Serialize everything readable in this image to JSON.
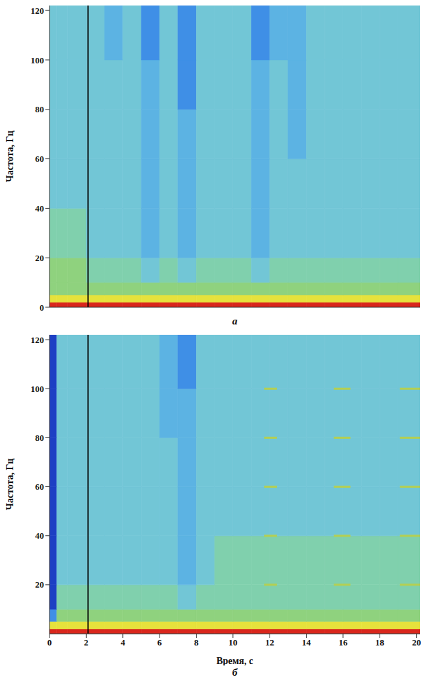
{
  "chart_data": [
    {
      "type": "heatmap",
      "title": "а",
      "ylabel": "Частота, Гц",
      "xlim": [
        0,
        20.2
      ],
      "xticks": [
        0,
        2,
        4,
        6,
        8,
        10,
        12,
        14,
        16,
        18,
        20
      ],
      "ylim": [
        0,
        122
      ],
      "yticks": [
        0,
        20,
        40,
        60,
        80,
        100,
        120
      ],
      "tick_labels": "y",
      "vline": 2.1,
      "time_edges": [
        0,
        0.4,
        1,
        2,
        3,
        4,
        5,
        6,
        7,
        8,
        9,
        10,
        11,
        12,
        13,
        14,
        15,
        16,
        17,
        18,
        19,
        20.2
      ],
      "frequency_edges": [
        0,
        2,
        5,
        10,
        20,
        40,
        60,
        80,
        100,
        122
      ],
      "zlim": [
        0,
        7
      ],
      "colors": [
        "#1d3fc4",
        "#3f8fe6",
        "#5cb3e3",
        "#72c6d6",
        "#80d0ad",
        "#8fd27e",
        "#e6e23c",
        "#d9261c"
      ],
      "levels": [
        [
          7,
          7,
          7,
          7,
          7,
          7,
          7,
          7,
          7,
          7,
          7,
          7,
          7,
          7,
          7,
          7,
          7,
          7,
          7,
          7,
          7
        ],
        [
          6,
          6,
          6,
          6,
          6,
          6,
          6,
          6,
          6,
          6,
          6,
          6,
          6,
          6,
          6,
          6,
          6,
          6,
          6,
          6,
          6
        ],
        [
          5,
          5,
          5,
          5,
          5,
          5,
          5,
          5,
          5,
          5,
          5,
          5,
          5,
          5,
          5,
          5,
          5,
          5,
          5,
          5,
          5
        ],
        [
          5,
          5,
          5,
          4,
          4,
          4,
          3,
          4,
          3,
          4,
          4,
          4,
          3,
          4,
          4,
          4,
          4,
          4,
          4,
          4,
          4
        ],
        [
          4,
          4,
          4,
          3,
          3,
          3,
          2,
          3,
          2,
          3,
          3,
          3,
          2,
          3,
          3,
          3,
          3,
          3,
          3,
          3,
          3
        ],
        [
          3,
          3,
          3,
          3,
          3,
          3,
          2,
          3,
          2,
          3,
          3,
          3,
          2,
          3,
          3,
          3,
          3,
          3,
          3,
          3,
          3
        ],
        [
          3,
          3,
          3,
          3,
          3,
          3,
          2,
          3,
          2,
          3,
          3,
          3,
          2,
          3,
          2,
          3,
          3,
          3,
          3,
          3,
          3
        ],
        [
          3,
          3,
          3,
          3,
          3,
          3,
          2,
          3,
          1,
          3,
          3,
          3,
          2,
          3,
          2,
          3,
          3,
          3,
          3,
          3,
          3
        ],
        [
          3,
          3,
          3,
          3,
          2,
          3,
          1,
          3,
          1,
          3,
          3,
          3,
          1,
          2,
          2,
          3,
          3,
          3,
          3,
          3,
          3
        ]
      ]
    },
    {
      "type": "heatmap",
      "title": "б",
      "xlabel": "Время, с",
      "ylabel": "Частота, Гц",
      "xlim": [
        0,
        20.2
      ],
      "xticks": [
        0,
        2,
        4,
        6,
        8,
        10,
        12,
        14,
        16,
        18,
        20
      ],
      "ylim": [
        0,
        122
      ],
      "yticks": [
        20,
        40,
        60,
        80,
        100,
        120
      ],
      "vline": 2.1,
      "time_edges": [
        0,
        0.4,
        1,
        2,
        3,
        4,
        5,
        6,
        7,
        8,
        9,
        10,
        11,
        12,
        13,
        14,
        15,
        16,
        17,
        18,
        19,
        20.2
      ],
      "frequency_edges": [
        0,
        2,
        5,
        10,
        20,
        40,
        60,
        80,
        100,
        122
      ],
      "zlim": [
        0,
        7
      ],
      "colors": [
        "#1d3fc4",
        "#3f8fe6",
        "#5cb3e3",
        "#72c6d6",
        "#80d0ad",
        "#8fd27e",
        "#e6e23c",
        "#d9261c"
      ],
      "levels": [
        [
          7,
          7,
          7,
          7,
          7,
          7,
          7,
          7,
          7,
          7,
          7,
          7,
          7,
          7,
          7,
          7,
          7,
          7,
          7,
          7,
          7
        ],
        [
          6,
          6,
          6,
          6,
          6,
          6,
          6,
          6,
          6,
          6,
          6,
          6,
          6,
          6,
          6,
          6,
          6,
          6,
          6,
          6,
          6
        ],
        [
          1,
          5,
          5,
          5,
          5,
          5,
          5,
          5,
          5,
          5,
          5,
          5,
          5,
          5,
          5,
          5,
          5,
          5,
          5,
          5,
          5
        ],
        [
          0,
          4,
          4,
          4,
          4,
          4,
          4,
          4,
          3,
          4,
          4,
          4,
          4,
          4,
          4,
          4,
          4,
          4,
          4,
          4,
          4
        ],
        [
          0,
          3,
          3,
          3,
          3,
          3,
          3,
          3,
          2,
          3,
          4,
          4,
          4,
          4,
          4,
          4,
          4,
          4,
          4,
          4,
          4
        ],
        [
          0,
          3,
          3,
          3,
          3,
          3,
          3,
          3,
          2,
          3,
          3,
          3,
          3,
          3,
          3,
          3,
          3,
          3,
          3,
          3,
          3
        ],
        [
          0,
          3,
          3,
          3,
          3,
          3,
          3,
          3,
          2,
          3,
          3,
          3,
          3,
          3,
          3,
          3,
          3,
          3,
          3,
          3,
          3
        ],
        [
          0,
          3,
          3,
          3,
          3,
          3,
          3,
          2,
          2,
          3,
          3,
          3,
          3,
          3,
          3,
          3,
          3,
          3,
          3,
          3,
          3
        ],
        [
          0,
          3,
          3,
          3,
          3,
          3,
          3,
          2,
          1,
          3,
          3,
          3,
          3,
          3,
          3,
          3,
          3,
          3,
          3,
          3,
          3
        ]
      ],
      "harmonics": {
        "times": [
          [
            11.7,
            12.4
          ],
          [
            15.5,
            16.4
          ],
          [
            19.1,
            20.2
          ]
        ],
        "frequencies": [
          20,
          40,
          60,
          80,
          100
        ],
        "color": "#b4cf52"
      }
    }
  ]
}
